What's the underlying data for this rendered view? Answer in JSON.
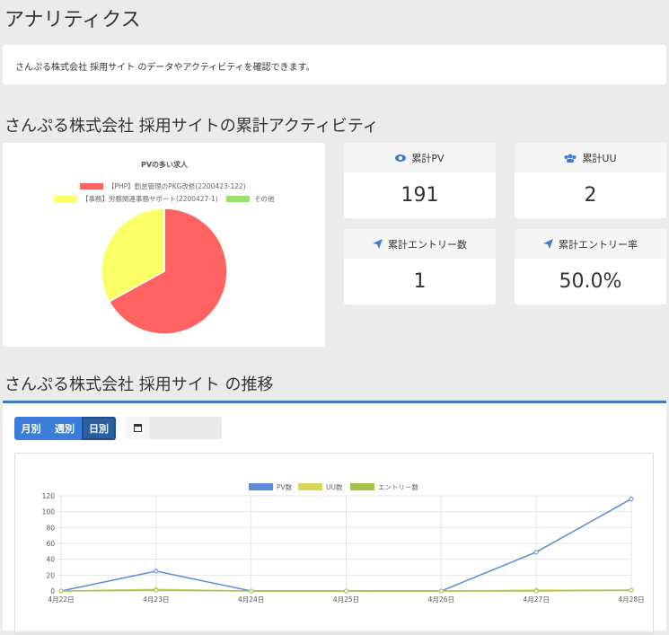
{
  "header": {
    "title": "アナリティクス"
  },
  "intro": {
    "text": "さんぷる株式会社 採用サイト のデータやアクティビティを確認できます。"
  },
  "summary": {
    "heading": "さんぷる株式会社 採用サイトの累計アクティビティ",
    "stats": [
      {
        "label": "累計PV",
        "value": 191
      },
      {
        "label": "累計UU",
        "value": 2
      },
      {
        "label": "累計エントリー数",
        "value": 1
      },
      {
        "label": "累計エントリー率",
        "value": "50.0%"
      }
    ]
  },
  "trend": {
    "heading": "さんぷる株式会社 採用サイト の推移",
    "tabs": [
      {
        "label": "月別"
      },
      {
        "label": "週別"
      },
      {
        "label": "日別",
        "active": true
      }
    ]
  },
  "chart_data": [
    {
      "type": "pie",
      "title": "PVの多い求人",
      "categories": [
        "【PHP】勤怠管理のPKG改修(2200423-122)",
        "【事務】労務関連事務サポート(2200427-1)",
        "その他"
      ],
      "values": [
        67,
        33,
        0
      ],
      "colors": [
        "#ff6361",
        "#fbff66",
        "#98e16a"
      ]
    },
    {
      "type": "line",
      "categories": [
        "4月22日",
        "4月23日",
        "4月24日",
        "4月25日",
        "4月26日",
        "4月27日",
        "4月28日"
      ],
      "series": [
        {
          "name": "PV数",
          "color": "#5b8bd9",
          "values": [
            0,
            25,
            0,
            0,
            0,
            49,
            116
          ]
        },
        {
          "name": "UU数",
          "color": "#d9d45c",
          "values": [
            0,
            2,
            0,
            0,
            0,
            1,
            1
          ]
        },
        {
          "name": "エントリー数",
          "color": "#a6c14a",
          "values": [
            0,
            1,
            0,
            0,
            0,
            0,
            1
          ]
        }
      ],
      "ylim": [
        0,
        120
      ],
      "yticks": [
        0,
        20,
        40,
        60,
        80,
        100,
        120
      ],
      "grid": true
    }
  ]
}
